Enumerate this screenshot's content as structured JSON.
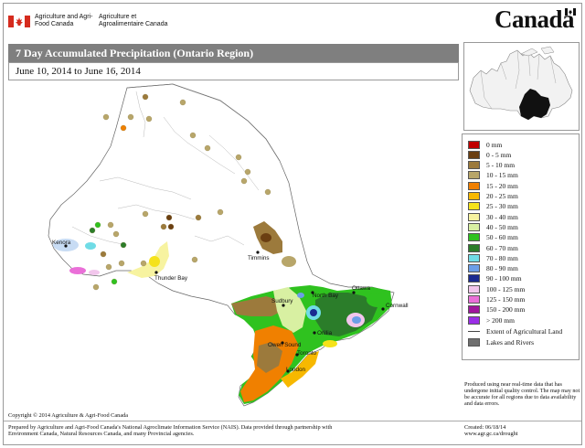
{
  "header": {
    "agency_en": "Agriculture and Agri-Food Canada",
    "agency_fr": "Agriculture et Agroalimentaire Canada",
    "wordmark": "Canada"
  },
  "title": "7 Day Accumulated Precipitation (Ontario Region)",
  "date_range": "June 10, 2014 to June 16, 2014",
  "legend": {
    "classes": [
      {
        "label": "0 mm",
        "color": "#c00000"
      },
      {
        "label": "0 - 5 mm",
        "color": "#6b3f12"
      },
      {
        "label": "5 - 10 mm",
        "color": "#9c7a3c"
      },
      {
        "label": "10 - 15 mm",
        "color": "#b8a66a"
      },
      {
        "label": "15 - 20 mm",
        "color": "#f08000"
      },
      {
        "label": "20 - 25 mm",
        "color": "#f7b800"
      },
      {
        "label": "25 - 30 mm",
        "color": "#f5e21a"
      },
      {
        "label": "30 - 40 mm",
        "color": "#f7f3a0"
      },
      {
        "label": "40 - 50 mm",
        "color": "#d8f0a2"
      },
      {
        "label": "50 - 60 mm",
        "color": "#2fc21f"
      },
      {
        "label": "60 - 70 mm",
        "color": "#2b7d2a"
      },
      {
        "label": "70 - 80 mm",
        "color": "#70dce6"
      },
      {
        "label": "80 - 90 mm",
        "color": "#6c9ee8"
      },
      {
        "label": "90 - 100 mm",
        "color": "#1a2a90"
      },
      {
        "label": "100 - 125 mm",
        "color": "#f2c6ec"
      },
      {
        "label": "125 - 150 mm",
        "color": "#ea6fd8"
      },
      {
        "label": "150 - 200 mm",
        "color": "#a0169c"
      },
      {
        "label": "> 200 mm",
        "color": "#9a2ee6"
      }
    ],
    "agri_extent_label": "Extent of Agricultural Land",
    "lakes_label": "Lakes and Rivers",
    "lakes_color": "#6f6f6f"
  },
  "disclaimer": "Produced using near real-time data that has undergone initial quality control. The map may not be accurate for all regions due to data availability and data errors.",
  "cities": {
    "kenora": "Kenora",
    "thunder_bay": "Thunder Bay",
    "timmins": "Timmins",
    "sudbury": "Sudbury",
    "north_bay": "North Bay",
    "ottawa": "Ottawa",
    "cornwall": "Cornwall",
    "orillia": "Orillia",
    "owen_sound": "Owen Sound",
    "toronto": "Toronto",
    "london": "London"
  },
  "footer": {
    "copyright": "Copyright © 2014 Agriculture & Agri-Food Canada",
    "prepared_line1": "Prepared by Agriculture and Agri-Food Canada's National Agroclimate Information Service (NAIS).  Data provided through partnership with",
    "prepared_line2": "Environment Canada, Natural Resources Canada, and many Provincial agencies.",
    "created": "Created:  06/18/14",
    "url": "www.agr.gc.ca/drought"
  }
}
